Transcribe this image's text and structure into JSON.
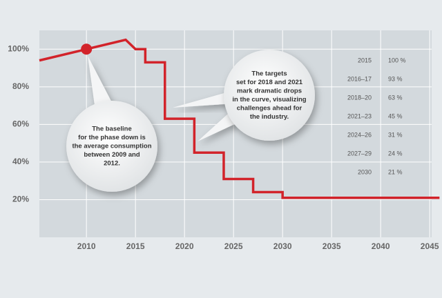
{
  "chart_data": {
    "type": "line",
    "x": [
      2005.2,
      2010,
      2014,
      2015,
      2016,
      2016,
      2018,
      2018,
      2021,
      2021,
      2024,
      2024,
      2027,
      2027,
      2030,
      2030,
      2046
    ],
    "series": [
      {
        "color": "#d2232a",
        "values": [
          94,
          100,
          105,
          100,
          100,
          93,
          93,
          63,
          63,
          45,
          45,
          31,
          31,
          24,
          24,
          21,
          21
        ]
      }
    ],
    "marker_index": 1,
    "xlim": [
      2005.2,
      2045.2
    ],
    "ylim": [
      0,
      110
    ],
    "xticks": [
      2010,
      2015,
      2020,
      2025,
      2030,
      2035,
      2040,
      2045
    ],
    "yticks": [
      {
        "value": 20,
        "label": "20%"
      },
      {
        "value": 40,
        "label": "40%"
      },
      {
        "value": 60,
        "label": "60%"
      },
      {
        "value": 80,
        "label": "80%"
      },
      {
        "value": 100,
        "label": "100%"
      }
    ],
    "grid": true,
    "annotations": [
      {
        "lines": [
          "The baseline",
          "for the phase down is",
          "the average consumption",
          "between 2009 and",
          "2012."
        ]
      },
      {
        "lines": [
          "The targets",
          "set for 2018 and 2021",
          "mark dramatic drops",
          "in the curve, visualizing",
          "challenges ahead for",
          "the industry."
        ]
      }
    ],
    "table": {
      "rows": [
        [
          "2015",
          "100 %"
        ],
        [
          "2016–17",
          "93 %"
        ],
        [
          "2018–20",
          "63 %"
        ],
        [
          "2021–23",
          "45 %"
        ],
        [
          "2024–26",
          "31 %"
        ],
        [
          "2027–29",
          "24 %"
        ],
        [
          "2030",
          "21 %"
        ]
      ]
    }
  }
}
